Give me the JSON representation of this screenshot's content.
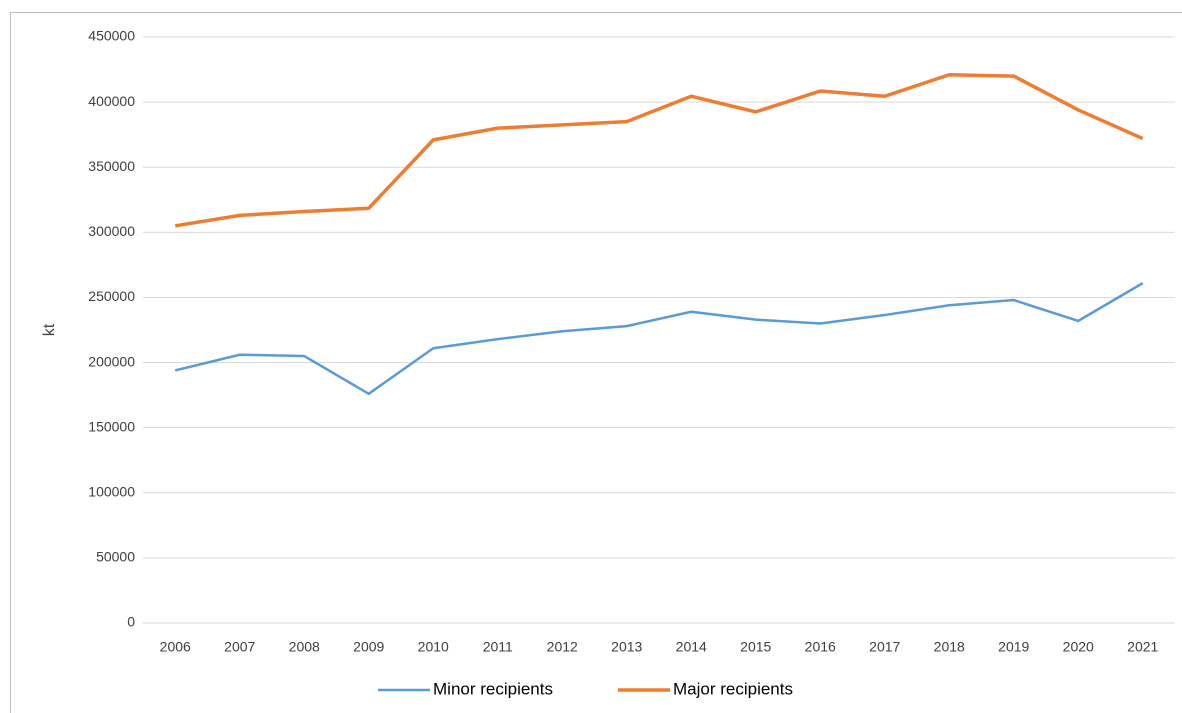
{
  "chart_data": {
    "type": "line",
    "y_label": "kt",
    "categories": [
      "2006",
      "2007",
      "2008",
      "2009",
      "2010",
      "2011",
      "2012",
      "2013",
      "2014",
      "2015",
      "2016",
      "2017",
      "2018",
      "2019",
      "2020",
      "2021"
    ],
    "series": [
      {
        "name": "Minor recipients",
        "color": "#5b9bd5",
        "values": [
          194000,
          206000,
          205000,
          176000,
          211000,
          218000,
          224000,
          228000,
          239000,
          233000,
          230000,
          236500,
          244000,
          248000,
          232000,
          261000
        ]
      },
      {
        "name": "Major recipients",
        "color": "#ed7d31",
        "values": [
          305000,
          313000,
          316000,
          318500,
          371000,
          380000,
          382500,
          385000,
          404500,
          392500,
          408500,
          404500,
          421000,
          420000,
          394000,
          372000
        ]
      }
    ],
    "ylim": [
      0,
      450000
    ],
    "yticks": [
      0,
      50000,
      100000,
      150000,
      200000,
      250000,
      300000,
      350000,
      400000,
      450000
    ],
    "grid": true,
    "legend": "bottom"
  }
}
